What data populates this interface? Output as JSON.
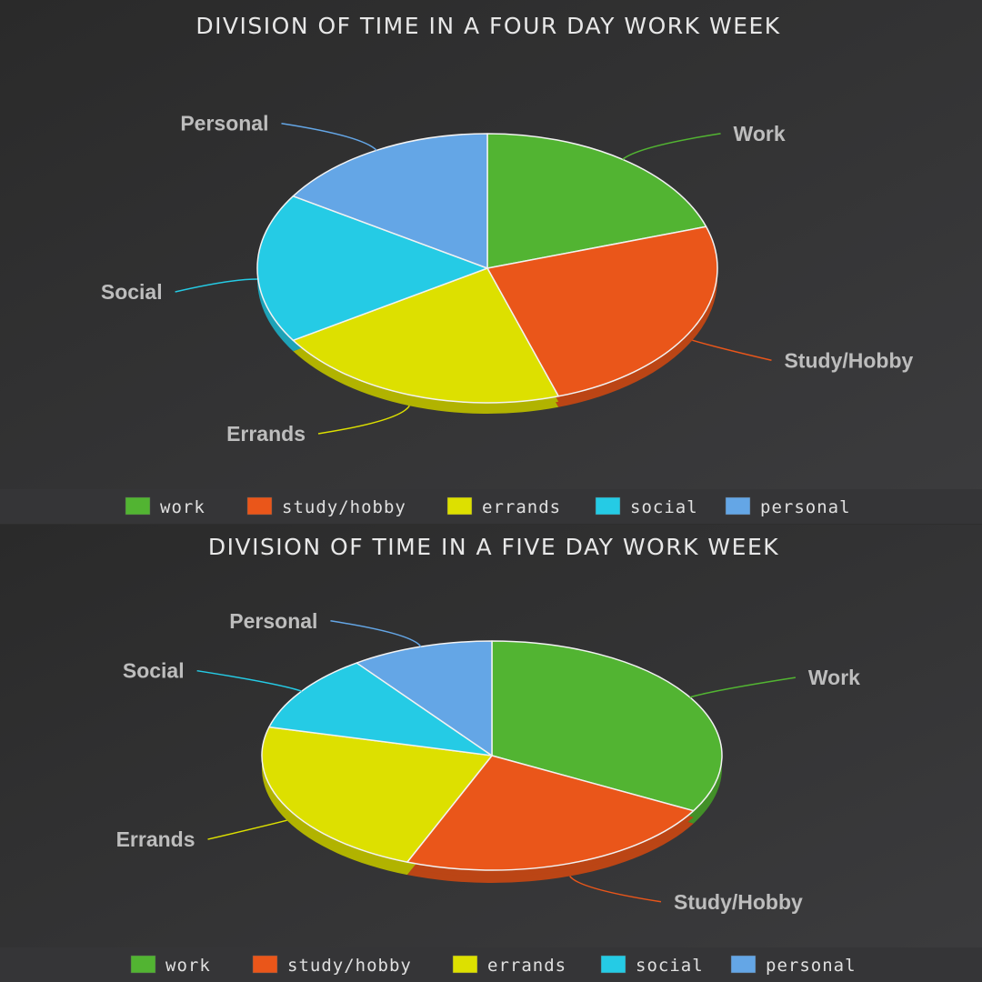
{
  "colors": {
    "Work": "#52b432",
    "Study/Hobby": "#ea561a",
    "Errands": "#dde000",
    "Social": "#25cbe5",
    "Personal": "#64a6e6"
  },
  "chart_data": [
    {
      "type": "pie",
      "title": "DIVISION OF TIME IN A FOUR DAY WORK WEEK",
      "categories": [
        "Work",
        "Study/Hobby",
        "Errands",
        "Social",
        "Personal"
      ],
      "values": [
        20,
        25,
        21,
        18,
        16
      ],
      "legend": "bottom",
      "legend_labels": [
        "work",
        "study/hobby",
        "errands",
        "social",
        "personal"
      ]
    },
    {
      "type": "pie",
      "title": "DIVISION OF TIME IN A FIVE DAY WORK WEEK",
      "categories": [
        "Work",
        "Study/Hobby",
        "Errands",
        "Social",
        "Personal"
      ],
      "values": [
        33,
        23,
        23,
        11,
        10
      ],
      "legend": "bottom",
      "legend_labels": [
        "work",
        "study/hobby",
        "errands",
        "social",
        "personal"
      ]
    }
  ]
}
